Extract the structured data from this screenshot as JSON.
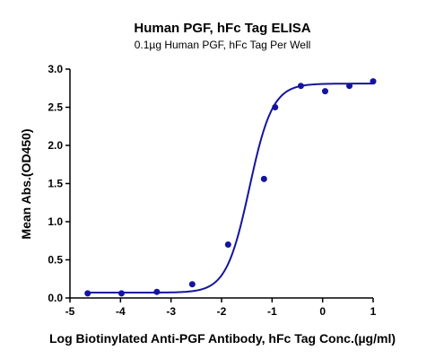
{
  "chart_data": {
    "type": "scatter",
    "title": "Human PGF, hFc Tag ELISA",
    "subtitle": "0.1µg Human PGF, hFc Tag Per Well",
    "xlabel": "Log Biotinylated Anti-PGF Antibody, hFc Tag Conc.(µg/ml)",
    "ylabel": "Mean Abs.(OD450)",
    "xlim": [
      -5,
      1
    ],
    "ylim": [
      0,
      3.0
    ],
    "x_ticks": [
      "-5",
      "-4",
      "-3",
      "-2",
      "-1",
      "0",
      "1"
    ],
    "y_ticks": [
      "0.0",
      "0.5",
      "1.0",
      "1.5",
      "2.0",
      "2.5",
      "3.0"
    ],
    "grid": false,
    "points": [
      {
        "x": -4.65,
        "y": 0.06
      },
      {
        "x": -3.98,
        "y": 0.06
      },
      {
        "x": -3.28,
        "y": 0.08
      },
      {
        "x": -2.58,
        "y": 0.18
      },
      {
        "x": -1.87,
        "y": 0.7
      },
      {
        "x": -1.16,
        "y": 1.56
      },
      {
        "x": -0.94,
        "y": 2.5
      },
      {
        "x": -0.43,
        "y": 2.78
      },
      {
        "x": 0.05,
        "y": 2.71
      },
      {
        "x": 0.53,
        "y": 2.78
      },
      {
        "x": 1.0,
        "y": 2.84
      }
    ],
    "fit_curve": {
      "model": "4PL",
      "bottom": 0.07,
      "top": 2.81,
      "log_ec50": -1.45,
      "hill_slope": 1.9,
      "x_range": [
        -4.65,
        1.0
      ]
    },
    "colors": {
      "series": "#1414a0",
      "axis": "#000000"
    }
  }
}
